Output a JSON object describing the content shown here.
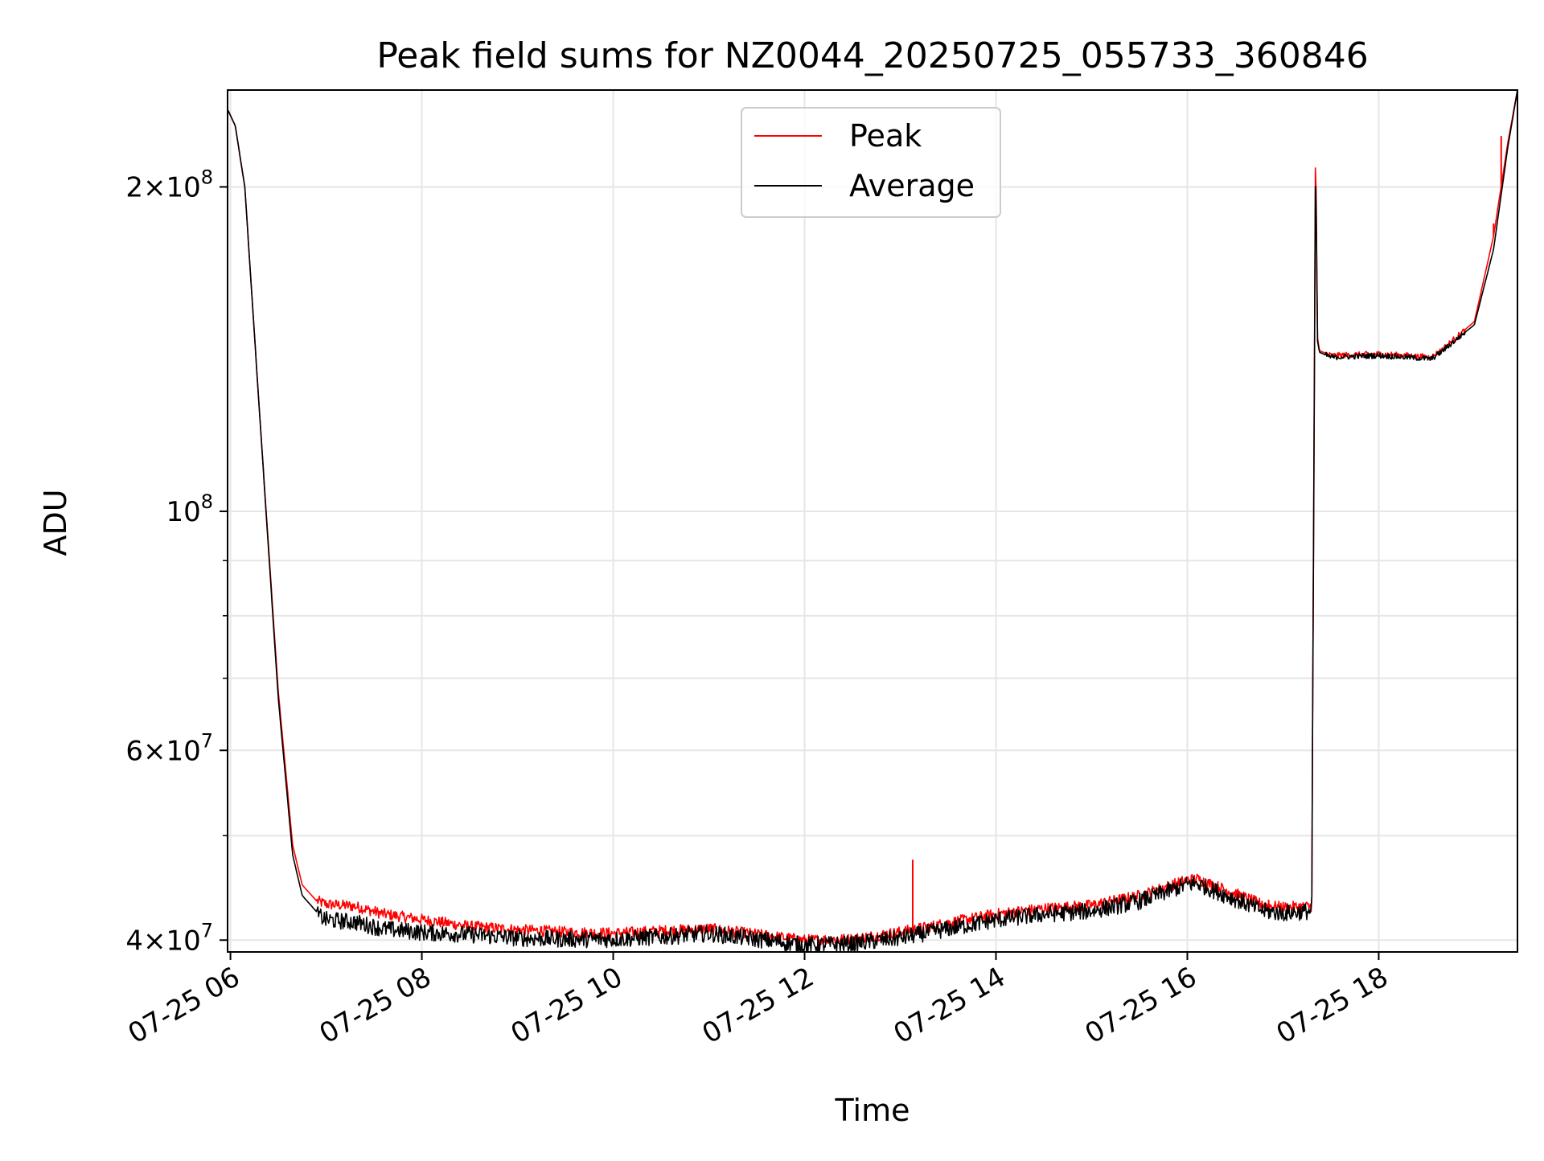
{
  "chart_data": {
    "type": "line",
    "title": "Peak field sums for NZ0044_20250725_055733_360846",
    "xlabel": "Time",
    "ylabel": "ADU",
    "y_scale": "log",
    "ylim": [
      39000000,
      246000000
    ],
    "x_range": [
      "07-25 05:58",
      "07-25 19:30"
    ],
    "grid": true,
    "legend_placement": "top-center",
    "x_ticks": [
      "07-25 06",
      "07-25 08",
      "07-25 10",
      "07-25 12",
      "07-25 14",
      "07-25 16",
      "07-25 18"
    ],
    "x_tick_hours": [
      6,
      8,
      10,
      12,
      14,
      16,
      18
    ],
    "y_ticks": [
      {
        "value": 40000000,
        "base": "4×10",
        "exp": "7"
      },
      {
        "value": 60000000,
        "base": "6×10",
        "exp": "7"
      },
      {
        "value": 100000000,
        "base": "10",
        "exp": "8"
      },
      {
        "value": 200000000,
        "base": "2×10",
        "exp": "8"
      }
    ],
    "y_minor_ticks": [
      50000000,
      70000000,
      80000000,
      90000000,
      300000000
    ],
    "series": [
      {
        "name": "Peak",
        "color": "#ff0000",
        "x_hours": [
          5.97,
          6.05,
          6.15,
          6.3,
          6.5,
          6.65,
          6.75,
          6.9,
          7.0,
          7.3,
          7.6,
          8.0,
          8.5,
          9.0,
          9.5,
          10.0,
          10.5,
          11.0,
          11.5,
          12.0,
          12.5,
          13.0,
          13.5,
          14.0,
          14.5,
          15.0,
          15.5,
          16.0,
          16.1,
          16.5,
          16.8,
          17.0,
          17.3,
          17.34,
          17.36,
          17.38,
          17.5,
          18.0,
          18.3,
          18.55,
          18.65,
          19.0,
          19.2,
          19.35,
          19.45
        ],
        "values": [
          236000000,
          228000000,
          200000000,
          125000000,
          68000000,
          49000000,
          45000000,
          43500000,
          43200000,
          43000000,
          42300000,
          41800000,
          41200000,
          40900000,
          40700000,
          40600000,
          40800000,
          41000000,
          40500000,
          40000000,
          40100000,
          40700000,
          41500000,
          42300000,
          42800000,
          43100000,
          44000000,
          45500000,
          45600000,
          44200000,
          43100000,
          42900000,
          43000000,
          225000000,
          145000000,
          141000000,
          139500000,
          140000000,
          139500000,
          139000000,
          141000000,
          150000000,
          180000000,
          220000000,
          246000000
        ]
      },
      {
        "name": "Average",
        "color": "#000000",
        "x_hours": [
          5.97,
          6.05,
          6.15,
          6.3,
          6.5,
          6.65,
          6.75,
          6.9,
          7.0,
          7.3,
          7.6,
          8.0,
          8.5,
          9.0,
          9.5,
          10.0,
          10.5,
          11.0,
          11.5,
          12.0,
          12.5,
          13.0,
          13.5,
          14.0,
          14.5,
          15.0,
          15.5,
          16.0,
          16.1,
          16.5,
          16.8,
          17.0,
          17.3,
          17.34,
          17.36,
          17.38,
          17.5,
          18.0,
          18.3,
          18.55,
          18.65,
          19.0,
          19.2,
          19.35,
          19.45
        ],
        "values": [
          236000000,
          228000000,
          200000000,
          125000000,
          67000000,
          48000000,
          44000000,
          42500000,
          42000000,
          41800000,
          41200000,
          40900000,
          40700000,
          40400000,
          40300000,
          40300000,
          40500000,
          40800000,
          40300000,
          39800000,
          39900000,
          40400000,
          41200000,
          42000000,
          42500000,
          42800000,
          43700000,
          45300000,
          45400000,
          43900000,
          42800000,
          42600000,
          42800000,
          216000000,
          144000000,
          140500000,
          139000000,
          139500000,
          139000000,
          138500000,
          140500000,
          149000000,
          175000000,
          218000000,
          246000000
        ]
      }
    ],
    "spikes": [
      {
        "series": "Peak",
        "x_hour": 13.13,
        "value": 47500000
      },
      {
        "series": "Peak",
        "x_hour": 9.25,
        "value": 41200000
      },
      {
        "series": "Peak",
        "x_hour": 9.57,
        "value": 40900000
      },
      {
        "series": "Peak",
        "x_hour": 13.88,
        "value": 42300000
      },
      {
        "series": "Peak",
        "x_hour": 15.05,
        "value": 43200000
      },
      {
        "series": "Peak",
        "x_hour": 16.78,
        "value": 43500000
      },
      {
        "series": "Peak",
        "x_hour": 16.85,
        "value": 43600000
      },
      {
        "series": "Peak",
        "x_hour": 19.2,
        "value": 185000000
      },
      {
        "series": "Peak",
        "x_hour": 19.28,
        "value": 223000000
      }
    ]
  }
}
